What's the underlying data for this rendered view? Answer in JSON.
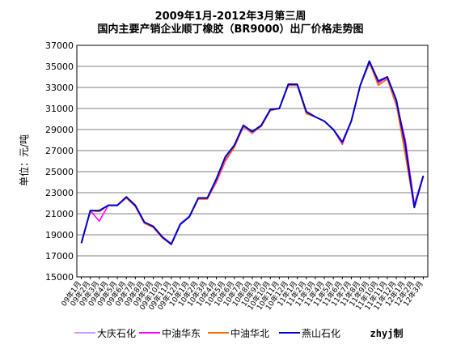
{
  "chart_data": {
    "type": "line",
    "title": "2009年1月-2012年3月第三周",
    "subtitle": "国内主要产销企业顺丁橡胶（BR9000）出厂价格走势图",
    "ylabel": "单位：元/吨",
    "xlabel": "",
    "ylim": [
      15000,
      37000
    ],
    "yticks": [
      "15000",
      "17000",
      "19000",
      "21000",
      "23000",
      "25000",
      "27000",
      "29000",
      "31000",
      "33000",
      "35000",
      "37000"
    ],
    "xticks": [
      "09年1月",
      "09年2月",
      "09年3月",
      "09年4月",
      "09年5月",
      "09年6月",
      "09年7月",
      "09年8月",
      "09年9月",
      "09年10月",
      "09年11月",
      "09年12月",
      "10年1月",
      "10年2月",
      "10年3月",
      "10年4月",
      "10年5月",
      "10年6月",
      "10年7月",
      "10年8月",
      "10年9月",
      "10年10月",
      "10年11月",
      "10年12月",
      "11年1月",
      "11年2月",
      "11年3月",
      "11年4月",
      "11年5月",
      "11年6月",
      "11年7月",
      "11年8月",
      "11年9月",
      "11年10月",
      "11年11月",
      "11年12月",
      "12年1月",
      "12年2月",
      "12年3月"
    ],
    "grid": true,
    "legend_position": "bottom",
    "credit": "zhyj制",
    "series": [
      {
        "name": "大庆石化",
        "color": "#cc99ff",
        "x": [
          0,
          1,
          2,
          3,
          4,
          5,
          6,
          7,
          8,
          9,
          10,
          11,
          12,
          13,
          14,
          15,
          16,
          17,
          18,
          19,
          20,
          21,
          22,
          23,
          24,
          25,
          26,
          27,
          28,
          29,
          30,
          31,
          32,
          33,
          34,
          35,
          36,
          37,
          38
        ],
        "values": [
          18300,
          21300,
          21300,
          21800,
          21800,
          22600,
          21800,
          20200,
          19800,
          18800,
          18200,
          20100,
          20800,
          22400,
          22400,
          24200,
          26200,
          27400,
          29200,
          28600,
          29400,
          30800,
          31000,
          33200,
          33200,
          30600,
          30200,
          29800,
          29000,
          27800,
          29800,
          33200,
          35200,
          33600,
          33800,
          31200,
          28000,
          22000,
          24600
        ]
      },
      {
        "name": "中油华东",
        "color": "#ff00ff",
        "x": [
          0,
          1,
          2,
          3,
          4,
          5,
          6,
          7,
          8,
          9,
          10,
          11,
          12,
          13,
          14,
          15,
          16,
          17,
          18,
          19,
          20,
          21,
          22,
          23,
          24,
          25,
          26,
          27,
          28,
          29,
          30,
          31,
          32,
          33,
          34,
          35,
          36,
          37,
          38
        ],
        "values": [
          18200,
          21300,
          20300,
          21800,
          21800,
          22500,
          21700,
          20100,
          19700,
          18700,
          18100,
          20000,
          20700,
          22400,
          22400,
          24000,
          26000,
          27300,
          29300,
          28700,
          29300,
          30900,
          31000,
          33300,
          33300,
          30600,
          30200,
          29800,
          29000,
          27600,
          29800,
          33200,
          35400,
          33400,
          34000,
          31600,
          28000,
          21800,
          24600
        ]
      },
      {
        "name": "中油华北",
        "color": "#ff6600",
        "x": [
          0,
          1,
          2,
          3,
          4,
          5,
          6,
          7,
          8,
          9,
          10,
          11,
          12,
          13,
          14,
          15,
          16,
          17,
          18,
          19,
          20,
          21,
          22,
          23,
          24,
          25,
          26,
          27,
          28,
          29,
          30,
          31,
          32,
          33,
          34,
          35,
          36,
          37,
          38
        ],
        "values": [
          18200,
          21300,
          21200,
          21800,
          21800,
          22500,
          21700,
          20100,
          19700,
          18700,
          18100,
          20000,
          20700,
          22400,
          22400,
          24100,
          26100,
          27300,
          29300,
          28700,
          29300,
          30800,
          31000,
          33200,
          33200,
          30500,
          30200,
          29800,
          29000,
          27700,
          29800,
          33200,
          35400,
          33200,
          33800,
          31400,
          26600,
          21600,
          24600
        ]
      },
      {
        "name": "燕山石化",
        "color": "#0000cc",
        "x": [
          0,
          1,
          2,
          3,
          4,
          5,
          6,
          7,
          8,
          9,
          10,
          11,
          12,
          13,
          14,
          15,
          16,
          17,
          18,
          19,
          20,
          21,
          22,
          23,
          24,
          25,
          26,
          27,
          28,
          29,
          30,
          31,
          32,
          33,
          34,
          35,
          36,
          37,
          38
        ],
        "values": [
          18200,
          21300,
          21300,
          21800,
          21800,
          22600,
          21800,
          20200,
          19800,
          18800,
          18100,
          20000,
          20700,
          22500,
          22500,
          24300,
          26400,
          27500,
          29400,
          28800,
          29400,
          30900,
          31000,
          33300,
          33300,
          30700,
          30200,
          29800,
          29000,
          27800,
          29800,
          33200,
          35500,
          33600,
          34000,
          31800,
          27500,
          21600,
          24600
        ]
      }
    ]
  }
}
